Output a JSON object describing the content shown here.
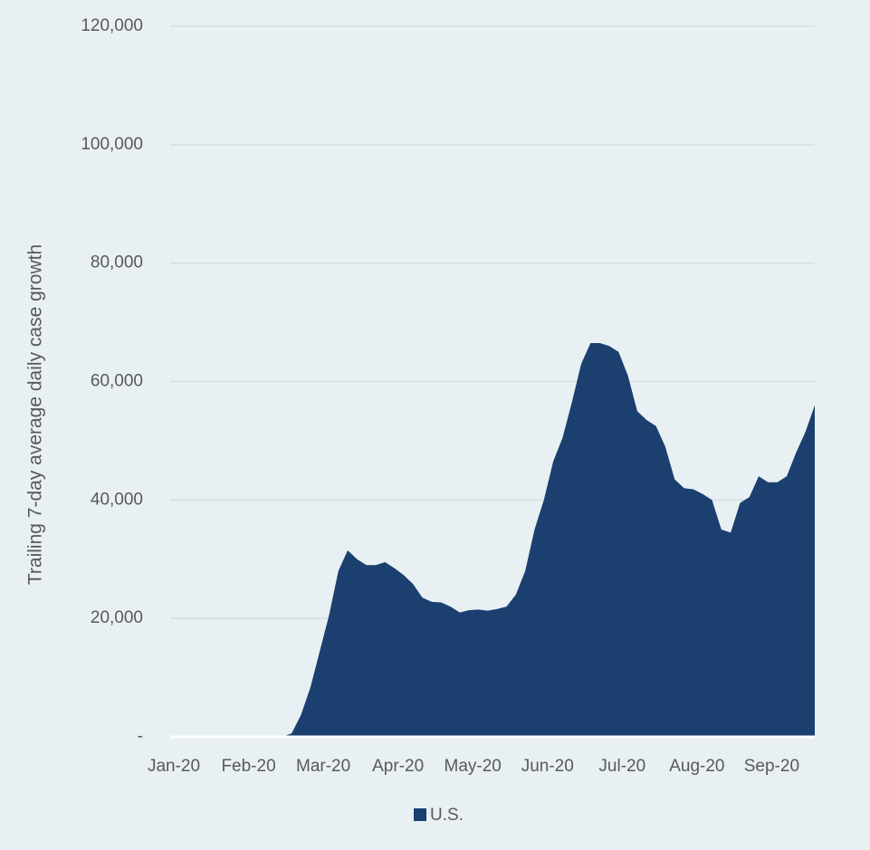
{
  "chart_data": {
    "type": "area",
    "y_axis_label": "Trailing 7-day average daily case growth",
    "categories": [
      "Jan-20",
      null,
      null,
      null,
      null,
      null,
      null,
      null,
      "Feb-20",
      null,
      null,
      null,
      null,
      null,
      null,
      null,
      "Mar-20",
      null,
      null,
      null,
      null,
      null,
      null,
      null,
      "Apr-20",
      null,
      null,
      null,
      null,
      null,
      null,
      null,
      "May-20",
      null,
      null,
      null,
      null,
      null,
      null,
      null,
      "Jun-20",
      null,
      null,
      null,
      null,
      null,
      null,
      null,
      "Jul-20",
      null,
      null,
      null,
      null,
      null,
      null,
      null,
      "Aug-20",
      null,
      null,
      null,
      null,
      null,
      null,
      null,
      "Sep-20",
      null,
      null,
      null,
      null,
      null
    ],
    "series": [
      {
        "name": "U.S.",
        "color": "#1b3f6e",
        "values": [
          0,
          0,
          0,
          0,
          0,
          0,
          0,
          0,
          0,
          0,
          0,
          0,
          0,
          600,
          3700,
          8300,
          14400,
          20500,
          28000,
          31500,
          30000,
          29000,
          29000,
          29500,
          28500,
          27300,
          25800,
          23500,
          22800,
          22700,
          22000,
          21000,
          21400,
          21500,
          21300,
          21600,
          22000,
          24000,
          28000,
          35000,
          40000,
          46500,
          50500,
          56500,
          63000,
          66500,
          66500,
          66000,
          65000,
          61000,
          55000,
          53500,
          52500,
          49000,
          43500,
          42000,
          41800,
          41000,
          40000,
          35000,
          34500,
          39500,
          40500,
          44000,
          43000,
          43000,
          44000,
          48000,
          51500,
          56000
        ]
      }
    ],
    "ylim": [
      0,
      120000
    ],
    "yticks": [
      {
        "value": 0,
        "label": "-"
      },
      {
        "value": 20000,
        "label": "20,000"
      },
      {
        "value": 40000,
        "label": "40,000"
      },
      {
        "value": 60000,
        "label": "60,000"
      },
      {
        "value": 80000,
        "label": "80,000"
      },
      {
        "value": 100000,
        "label": "100,000"
      },
      {
        "value": 120000,
        "label": "120,000"
      }
    ],
    "grid": true,
    "legend": "bottom"
  }
}
